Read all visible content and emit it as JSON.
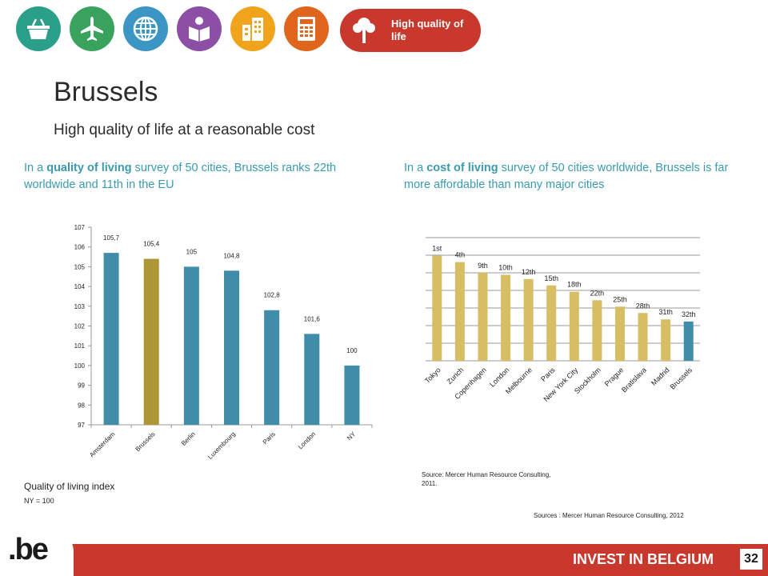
{
  "nav": {
    "icons": [
      {
        "name": "basket-icon",
        "color": "#2aa08a"
      },
      {
        "name": "airplane-icon",
        "color": "#39a35e"
      },
      {
        "name": "globe-icon",
        "color": "#3b96c3"
      },
      {
        "name": "reader-icon",
        "color": "#8d4fa6"
      },
      {
        "name": "buildings-icon",
        "color": "#f0a41c"
      },
      {
        "name": "calculator-icon",
        "color": "#e0661d"
      }
    ],
    "active": {
      "label": "High quality of life",
      "icon": "tree-icon",
      "color": "#c8382c"
    }
  },
  "title": "Brussels",
  "subtitle": "High quality of life at a reasonable cost",
  "left_intro": {
    "pre": "In a ",
    "bold": "quality of living",
    "post": " survey of 50 cities, Brussels ranks 22th worldwide and 11th in the EU"
  },
  "right_intro": {
    "pre": "In a ",
    "bold": "cost of living",
    "post": " survey of 50 cities worldwide, Brussels is far more affordable than many major cities"
  },
  "quality_label": "Quality of living index",
  "quality_sub": "NY = 100",
  "source_1": "Source: Mercer Human Resource Consulting, 2011.",
  "source_2": "Sources : Mercer Human Resource Consulting, 2012",
  "footer": {
    "text": "INVEST IN BELGIUM",
    "page": "32",
    "logo": ".be"
  },
  "chart_data": [
    {
      "type": "bar",
      "categories": [
        "Amsterdam",
        "Brussels",
        "Berlin",
        "Luxembourg",
        "Paris",
        "London",
        "NY"
      ],
      "values": [
        105.7,
        105.4,
        105,
        104.8,
        102.8,
        101.6,
        100
      ],
      "data_labels": [
        "105,7",
        "105,4",
        "105",
        "104,8",
        "102,8",
        "101,6",
        "100"
      ],
      "ylim": [
        97,
        107
      ],
      "yticks": [
        97,
        98,
        99,
        100,
        101,
        102,
        103,
        104,
        105,
        106,
        107
      ],
      "highlight": "Brussels",
      "color": "#3f8da8",
      "highlight_color": "#ad9636",
      "grid": false
    },
    {
      "type": "bar",
      "categories": [
        "Tokyo",
        "Zurich",
        "Copenhagen",
        "London",
        "Melbourne",
        "Paris",
        "New York City",
        "Stockholm",
        "Prague",
        "Bratislava",
        "Madrid",
        "Brussels"
      ],
      "values": [
        1,
        4,
        9,
        10,
        12,
        15,
        18,
        22,
        25,
        28,
        31,
        32
      ],
      "data_labels": [
        "1st",
        "4th",
        "9th",
        "10th",
        "12th",
        "15th",
        "18th",
        "22th",
        "25th",
        "28th",
        "31th",
        "32th"
      ],
      "highlight": "Brussels",
      "color": "#d7bd63",
      "highlight_color": "#3f8da8",
      "grid": true
    }
  ]
}
